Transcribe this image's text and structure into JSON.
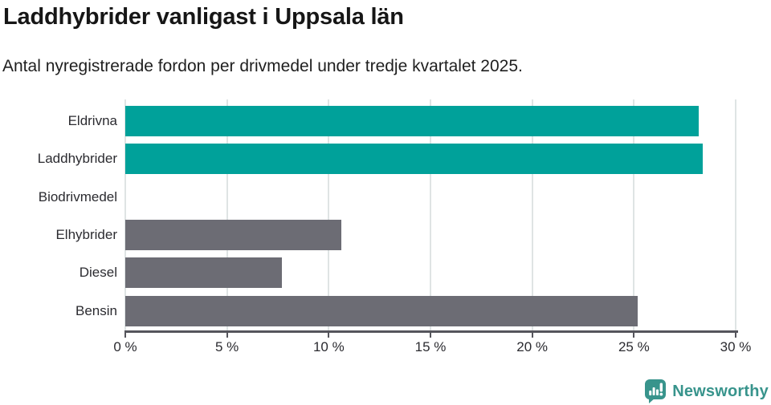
{
  "chart_data": {
    "type": "bar",
    "orientation": "horizontal",
    "title": "Laddhybrider vanligast i Uppsala län",
    "subtitle": "Antal nyregistrerade fordon per drivmedel under tredje kvartalet 2025.",
    "categories": [
      "Eldrivna",
      "Laddhybrider",
      "Biodrivmedel",
      "Elhybrider",
      "Diesel",
      "Bensin"
    ],
    "values": [
      28.2,
      28.4,
      0,
      10.6,
      7.7,
      25.2
    ],
    "unit": "%",
    "xlim": [
      0,
      30
    ],
    "xticks": [
      0,
      5,
      10,
      15,
      20,
      25,
      30
    ],
    "xtick_labels": [
      "0 %",
      "5 %",
      "10 %",
      "15 %",
      "20 %",
      "25 %",
      "30 %"
    ],
    "highlighted": [
      true,
      true,
      false,
      false,
      false,
      false
    ],
    "grid": true,
    "legend": "none",
    "colors": {
      "highlight": "#00a19a",
      "default": "#6c6c74",
      "gridline": "#dfe4e4",
      "axis": "#55555c",
      "text": "#2b2b30"
    }
  },
  "footer": {
    "brand": "Newsworthy",
    "brand_color": "#38948c",
    "logo_icon": "newsworthy-speech-bubble-chart-icon"
  }
}
